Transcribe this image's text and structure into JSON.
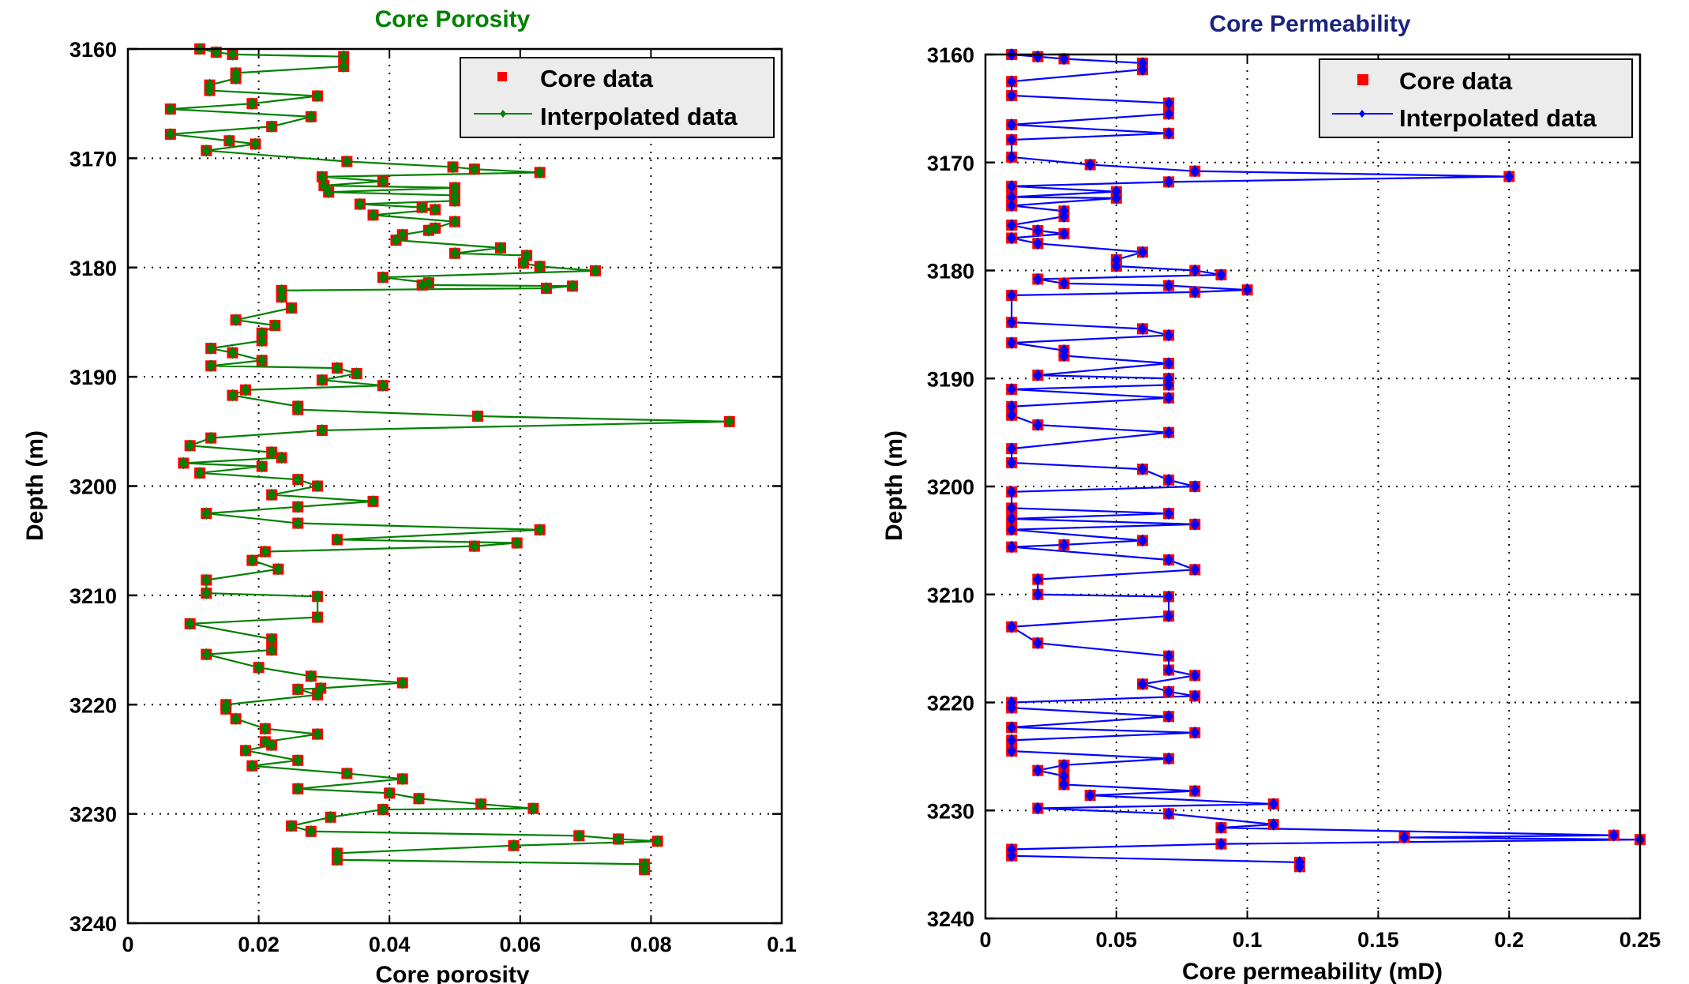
{
  "chart_data": [
    {
      "type": "line",
      "title": "Core Porosity",
      "title_color": "#008000",
      "xlabel": "Core porosity",
      "ylabel": "Depth (m)",
      "xlim": [
        0,
        0.1
      ],
      "ylim": [
        3160,
        3240
      ],
      "y_reversed": true,
      "grid": true,
      "legend_position": "top-right",
      "xticks": [
        "0",
        "0.02",
        "0.04",
        "0.06",
        "0.08",
        "0.1"
      ],
      "yticks": [
        "3160",
        "3170",
        "3180",
        "3190",
        "3200",
        "3210",
        "3220",
        "3230",
        "3240"
      ],
      "series": [
        {
          "name": "Core data",
          "marker": "square",
          "color": "#ff0000"
        },
        {
          "name": "Interpolated data",
          "marker": "diamond",
          "color": "#008000"
        }
      ],
      "depth": [
        3160.0,
        3160.3,
        3160.5,
        3160.7,
        3161.6,
        3162.2,
        3162.7,
        3163.3,
        3163.8,
        3164.3,
        3165.0,
        3165.5,
        3166.2,
        3167.1,
        3167.8,
        3168.4,
        3168.7,
        3169.3,
        3170.3,
        3170.8,
        3171.0,
        3171.3,
        3171.7,
        3172.1,
        3172.5,
        3172.7,
        3173.1,
        3173.4,
        3173.9,
        3174.2,
        3174.5,
        3174.7,
        3175.2,
        3175.8,
        3176.4,
        3176.6,
        3177.0,
        3177.5,
        3178.2,
        3178.7,
        3178.9,
        3179.6,
        3179.9,
        3180.3,
        3180.9,
        3181.4,
        3181.6,
        3181.7,
        3181.9,
        3182.1,
        3182.7,
        3183.7,
        3184.8,
        3185.3,
        3186.0,
        3186.7,
        3187.4,
        3187.8,
        3188.5,
        3189.0,
        3189.2,
        3189.7,
        3190.3,
        3190.8,
        3191.2,
        3191.7,
        3192.7,
        3193.0,
        3193.6,
        3194.1,
        3194.9,
        3195.6,
        3196.3,
        3196.9,
        3197.4,
        3197.9,
        3198.2,
        3198.8,
        3199.4,
        3200.0,
        3200.8,
        3201.4,
        3201.9,
        3202.5,
        3203.4,
        3204.0,
        3204.9,
        3205.2,
        3205.5,
        3206.0,
        3206.8,
        3207.6,
        3208.6,
        3209.8,
        3210.1,
        3212.0,
        3212.6,
        3214.0,
        3215.0,
        3215.4,
        3216.6,
        3217.4,
        3218.0,
        3218.5,
        3218.6,
        3219.1,
        3220.0,
        3220.4,
        3221.3,
        3222.2,
        3222.7,
        3223.4,
        3223.7,
        3224.2,
        3225.1,
        3225.6,
        3226.3,
        3226.8,
        3227.7,
        3228.1,
        3228.6,
        3229.1,
        3229.5,
        3229.6,
        3230.3,
        3231.1,
        3231.6,
        3232.0,
        3232.3,
        3232.5,
        3232.9,
        3233.6,
        3234.2,
        3234.6,
        3235.1
      ],
      "values": [
        0.011,
        0.0135,
        0.016,
        0.033,
        0.033,
        0.0165,
        0.0165,
        0.0125,
        0.0125,
        0.029,
        0.019,
        0.0065,
        0.028,
        0.022,
        0.0065,
        0.0155,
        0.0195,
        0.012,
        0.0335,
        0.0497,
        0.053,
        0.063,
        0.0297,
        0.039,
        0.03,
        0.05,
        0.0307,
        0.05,
        0.05,
        0.0355,
        0.045,
        0.047,
        0.0375,
        0.05,
        0.047,
        0.046,
        0.042,
        0.041,
        0.057,
        0.05,
        0.061,
        0.0605,
        0.063,
        0.0715,
        0.039,
        0.046,
        0.045,
        0.068,
        0.064,
        0.0235,
        0.0235,
        0.025,
        0.0165,
        0.0225,
        0.0205,
        0.0205,
        0.0127,
        0.016,
        0.0205,
        0.0127,
        0.032,
        0.035,
        0.0297,
        0.039,
        0.018,
        0.016,
        0.026,
        0.026,
        0.0535,
        0.092,
        0.0297,
        0.0127,
        0.0095,
        0.022,
        0.0235,
        0.0085,
        0.0205,
        0.011,
        0.026,
        0.029,
        0.022,
        0.0375,
        0.026,
        0.012,
        0.026,
        0.063,
        0.032,
        0.0595,
        0.053,
        0.021,
        0.019,
        0.023,
        0.012,
        0.012,
        0.029,
        0.029,
        0.0095,
        0.022,
        0.022,
        0.012,
        0.02,
        0.028,
        0.042,
        0.0295,
        0.026,
        0.029,
        0.015,
        0.015,
        0.0165,
        0.021,
        0.029,
        0.021,
        0.022,
        0.018,
        0.026,
        0.019,
        0.0335,
        0.042,
        0.026,
        0.04,
        0.0445,
        0.054,
        0.062,
        0.039,
        0.031,
        0.025,
        0.028,
        0.069,
        0.075,
        0.081,
        0.059,
        0.032,
        0.032,
        0.079,
        0.079
      ]
    },
    {
      "type": "line",
      "title": "Core Permeability",
      "title_color": "#1a237e",
      "xlabel": "Core permeability (mD)",
      "ylabel": "Depth (m)",
      "xlim": [
        0,
        0.25
      ],
      "ylim": [
        3160,
        3240
      ],
      "y_reversed": true,
      "grid": true,
      "legend_position": "top-right",
      "xticks": [
        "0",
        "0.05",
        "0.1",
        "0.15",
        "0.2",
        "0.25"
      ],
      "yticks": [
        "3160",
        "3170",
        "3180",
        "3190",
        "3200",
        "3210",
        "3220",
        "3230",
        "3240"
      ],
      "series": [
        {
          "name": "Core data",
          "marker": "square",
          "color": "#ff0000"
        },
        {
          "name": "Interpolated data",
          "marker": "diamond",
          "color": "#0000ff"
        }
      ],
      "depth": [
        3160.0,
        3160.2,
        3160.4,
        3160.8,
        3161.4,
        3162.5,
        3163.8,
        3164.5,
        3165.5,
        3166.5,
        3167.3,
        3167.9,
        3169.5,
        3170.2,
        3170.8,
        3171.3,
        3171.8,
        3172.2,
        3172.7,
        3173.2,
        3173.3,
        3174.0,
        3174.5,
        3175.0,
        3175.8,
        3176.3,
        3176.6,
        3177.0,
        3177.5,
        3178.3,
        3179.0,
        3179.6,
        3180.0,
        3180.4,
        3180.8,
        3181.2,
        3181.4,
        3181.8,
        3182.0,
        3182.3,
        3184.8,
        3185.4,
        3186.0,
        3186.7,
        3187.4,
        3187.9,
        3188.6,
        3189.7,
        3190.0,
        3190.6,
        3191.0,
        3191.8,
        3192.6,
        3193.4,
        3194.3,
        3195.0,
        3196.5,
        3197.8,
        3198.4,
        3199.4,
        3200.0,
        3200.5,
        3202.0,
        3202.5,
        3203.0,
        3203.5,
        3204.0,
        3205.0,
        3205.4,
        3205.6,
        3206.8,
        3207.7,
        3208.6,
        3210.0,
        3210.2,
        3212.0,
        3213.0,
        3214.5,
        3215.7,
        3217.0,
        3217.5,
        3218.3,
        3219.0,
        3219.4,
        3220.0,
        3220.5,
        3221.3,
        3222.3,
        3222.8,
        3223.5,
        3224.5,
        3225.2,
        3225.8,
        3226.3,
        3226.8,
        3227.6,
        3228.2,
        3228.6,
        3229.4,
        3229.8,
        3230.3,
        3231.3,
        3231.6,
        3232.3,
        3232.5,
        3232.7,
        3233.1,
        3233.6,
        3234.2,
        3234.8,
        3235.2
      ],
      "values": [
        0.01,
        0.02,
        0.03,
        0.06,
        0.06,
        0.01,
        0.01,
        0.07,
        0.07,
        0.01,
        0.07,
        0.01,
        0.01,
        0.04,
        0.08,
        0.2,
        0.07,
        0.01,
        0.05,
        0.01,
        0.05,
        0.01,
        0.03,
        0.03,
        0.01,
        0.02,
        0.03,
        0.01,
        0.02,
        0.06,
        0.05,
        0.05,
        0.08,
        0.09,
        0.02,
        0.03,
        0.07,
        0.1,
        0.08,
        0.01,
        0.01,
        0.06,
        0.07,
        0.01,
        0.03,
        0.03,
        0.07,
        0.02,
        0.07,
        0.07,
        0.01,
        0.07,
        0.01,
        0.01,
        0.02,
        0.07,
        0.01,
        0.01,
        0.06,
        0.07,
        0.08,
        0.01,
        0.01,
        0.07,
        0.01,
        0.08,
        0.01,
        0.06,
        0.03,
        0.01,
        0.07,
        0.08,
        0.02,
        0.02,
        0.07,
        0.07,
        0.01,
        0.02,
        0.07,
        0.07,
        0.08,
        0.06,
        0.07,
        0.08,
        0.01,
        0.01,
        0.07,
        0.01,
        0.08,
        0.01,
        0.01,
        0.07,
        0.03,
        0.02,
        0.03,
        0.03,
        0.08,
        0.04,
        0.11,
        0.02,
        0.07,
        0.11,
        0.09,
        0.24,
        0.16,
        0.25,
        0.09,
        0.01,
        0.01,
        0.12,
        0.12
      ]
    }
  ]
}
